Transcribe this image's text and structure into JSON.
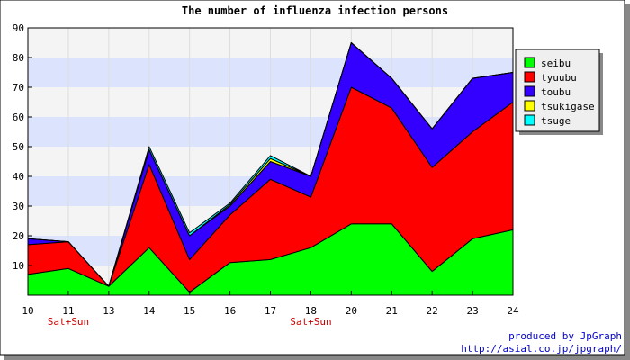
{
  "chart_data": {
    "type": "area",
    "stacked": true,
    "title": "The number of influenza infection persons",
    "categories": [
      "10",
      "11",
      "13",
      "14",
      "15",
      "16",
      "17",
      "18",
      "20",
      "21",
      "22",
      "23",
      "24"
    ],
    "category_notes": [
      {
        "category": "11",
        "label": "Sat+Sun"
      },
      {
        "category": "18",
        "label": "Sat+Sun"
      }
    ],
    "ylim": [
      0,
      90
    ],
    "yticks": [
      10,
      20,
      30,
      40,
      50,
      60,
      70,
      80,
      90
    ],
    "legend_position": "right",
    "series": [
      {
        "name": "seibu",
        "color": "#00ff00",
        "values": [
          7,
          9,
          3,
          16,
          1,
          11,
          12,
          16,
          24,
          24,
          8,
          19,
          22
        ]
      },
      {
        "name": "tyuubu",
        "color": "#ff0000",
        "values": [
          10,
          9,
          0,
          28,
          11,
          16,
          27,
          17,
          46,
          39,
          35,
          36,
          43
        ]
      },
      {
        "name": "toubu",
        "color": "#3300ff",
        "values": [
          2,
          0,
          0,
          5,
          8,
          3,
          6,
          7,
          15,
          10,
          13,
          18,
          10
        ]
      },
      {
        "name": "tsukigase",
        "color": "#ffff00",
        "values": [
          0,
          0,
          0,
          0,
          0,
          0.5,
          1,
          0,
          0,
          0,
          0,
          0,
          0
        ]
      },
      {
        "name": "tsuge",
        "color": "#00ffff",
        "values": [
          0,
          0,
          0,
          1,
          1,
          0.5,
          1,
          0,
          0,
          0,
          0,
          0,
          0
        ]
      }
    ],
    "credit": [
      "produced by JpGraph",
      "http://asial.co.jp/jpgraph/"
    ],
    "colors": {
      "band_light": "#f4f4f4",
      "band_blue": "#dbe4fc",
      "note_text": "#cc0000",
      "credit_text": "#0000cc"
    }
  }
}
